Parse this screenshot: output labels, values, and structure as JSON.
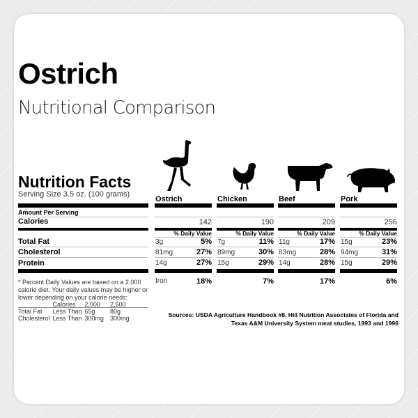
{
  "title": "Ostrich",
  "subtitle": "Nutritional Comparison",
  "label": {
    "heading": "Nutrition Facts",
    "serving": "Serving Size 3.5 oz. (100 grams)",
    "amount_per_serving": "Amount Per Serving",
    "rows": [
      "Calories",
      "Total Fat",
      "Cholesterol",
      "Protein"
    ],
    "daily_value_header": "% Daily Value",
    "footnote": "* Percent Daily Values are based on a 2,000 calorie diet. Your daily values may be higher or lower depending on your calorie needs:",
    "footnote_table": [
      [
        "",
        "Calories",
        "2,000",
        "2,500"
      ],
      [
        "Total Fat",
        "Less Than",
        "65g",
        "80g"
      ],
      [
        "Cholesterol",
        "Less Than",
        "300mg",
        "300mg"
      ]
    ]
  },
  "animals": [
    {
      "name": "Ostrich",
      "icon": "ostrich-icon",
      "calories": "142",
      "fat": "3g",
      "fat_pct": "5%",
      "chol": "81mg",
      "chol_pct": "27%",
      "protein": "14g",
      "protein_pct": "27%",
      "iron_label": "Iron",
      "iron_pct": "18%"
    },
    {
      "name": "Chicken",
      "icon": "chicken-icon",
      "calories": "190",
      "fat": "7g",
      "fat_pct": "11%",
      "chol": "89mg",
      "chol_pct": "30%",
      "protein": "15g",
      "protein_pct": "29%",
      "iron_pct": "7%"
    },
    {
      "name": "Beef",
      "icon": "cow-icon",
      "calories": "209",
      "fat": "11g",
      "fat_pct": "17%",
      "chol": "83mg",
      "chol_pct": "28%",
      "protein": "14g",
      "protein_pct": "28%",
      "iron_pct": "17%"
    },
    {
      "name": "Pork",
      "icon": "pig-icon",
      "calories": "256",
      "fat": "15g",
      "fat_pct": "23%",
      "chol": "94mg",
      "chol_pct": "31%",
      "protein": "15g",
      "protein_pct": "29%",
      "iron_pct": "6%"
    }
  ],
  "sources": "Sources: USDA Agriculture Handbook #8, Hill Nutrition Associates of Florida and Texas A&M University System meat studies, 1993 and 1996"
}
